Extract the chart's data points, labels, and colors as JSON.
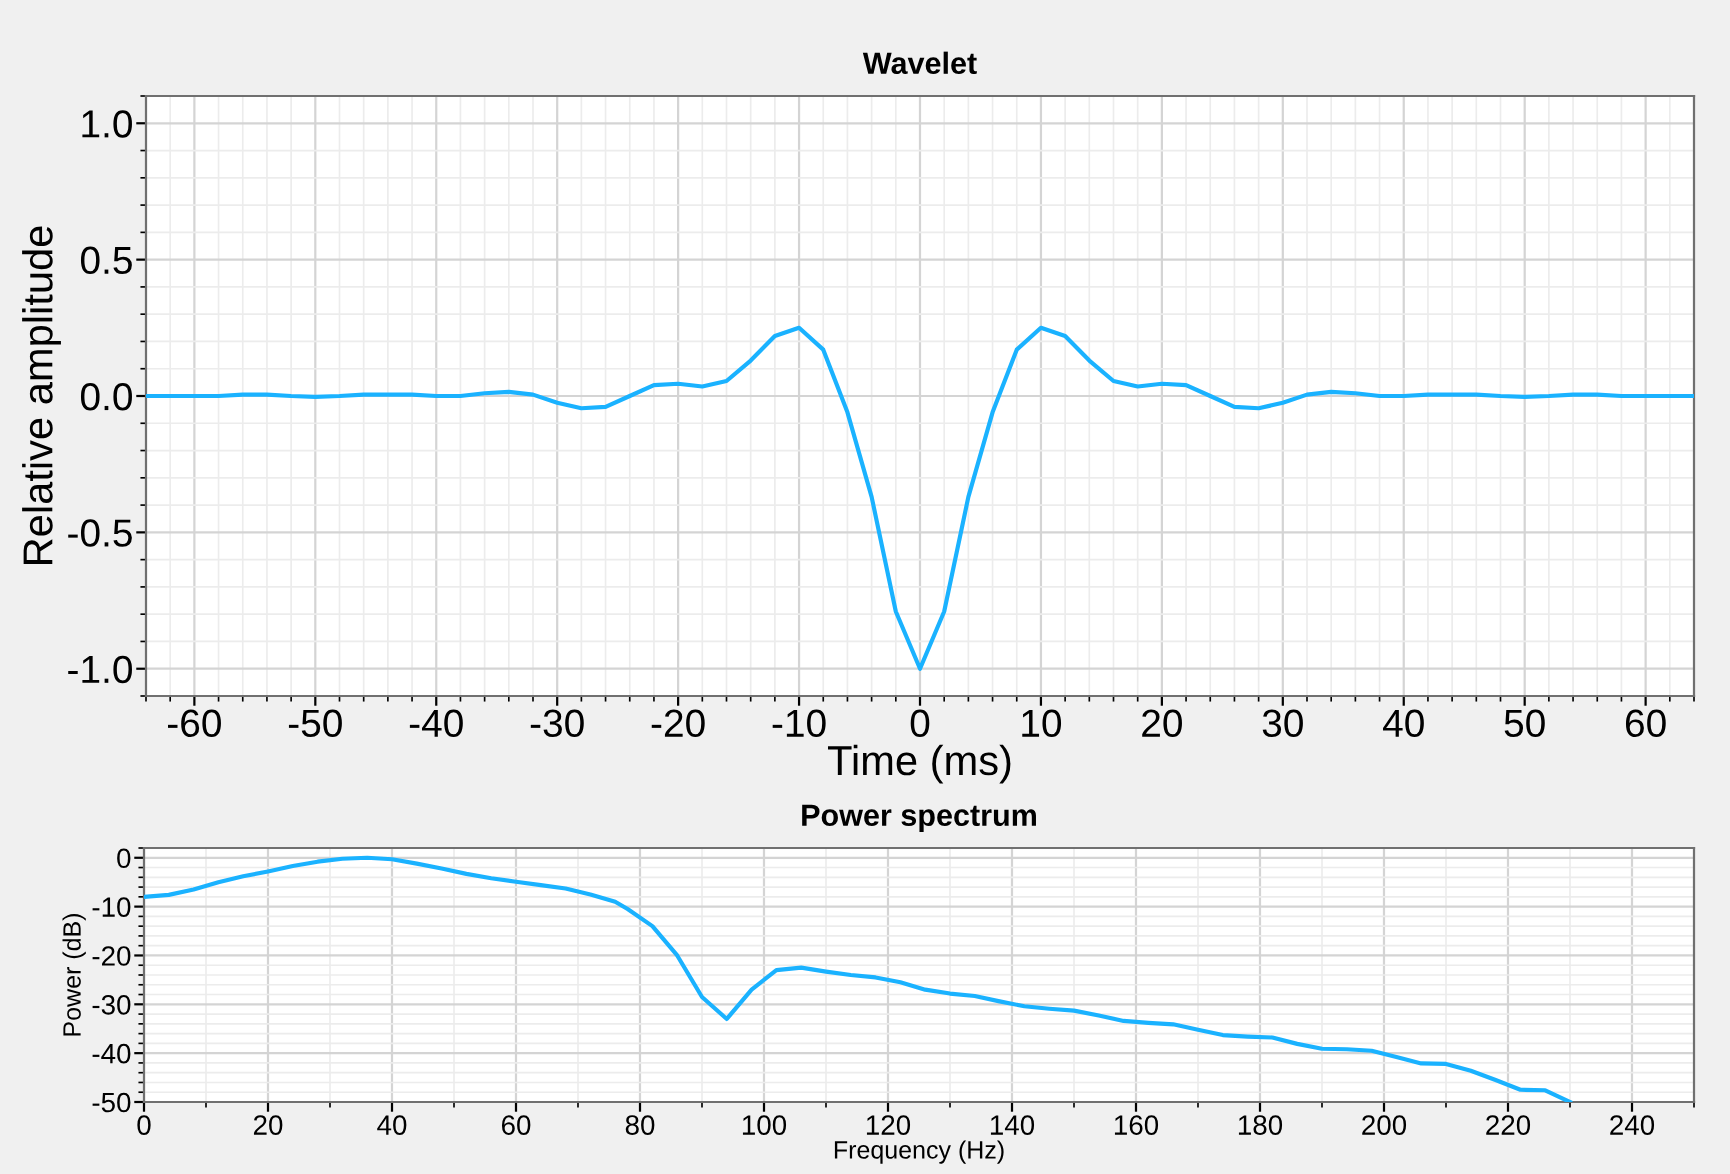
{
  "chart_data": [
    {
      "type": "line",
      "title": "Wavelet",
      "xlabel": "Time (ms)",
      "ylabel": "Relative amplitude",
      "xlim": [
        -64,
        64
      ],
      "ylim": [
        -1.1,
        1.1
      ],
      "xticks": [
        -60,
        -50,
        -40,
        -30,
        -20,
        -10,
        0,
        10,
        20,
        30,
        40,
        50,
        60
      ],
      "yticks": [
        {
          "value": -1.0,
          "label": "-1.0"
        },
        {
          "value": -0.5,
          "label": "-0.5"
        },
        {
          "value": 0.0,
          "label": "0.0"
        },
        {
          "value": 0.5,
          "label": "0.5"
        },
        {
          "value": 1.0,
          "label": "1.0"
        }
      ],
      "grid": true,
      "marker": "none",
      "line_style": "solid",
      "x": [
        -64,
        -62,
        -60,
        -58,
        -56,
        -54,
        -52,
        -50,
        -48,
        -46,
        -44,
        -42,
        -40,
        -38,
        -36,
        -34,
        -32,
        -30,
        -28,
        -26,
        -24,
        -22,
        -20,
        -18,
        -16,
        -14,
        -12,
        -10,
        -8,
        -6,
        -4,
        -2,
        0,
        2,
        4,
        6,
        8,
        10,
        12,
        14,
        16,
        18,
        20,
        22,
        24,
        26,
        28,
        30,
        32,
        34,
        36,
        38,
        40,
        42,
        44,
        46,
        48,
        50,
        52,
        54,
        56,
        58,
        60,
        62,
        64
      ],
      "series": [
        {
          "color": "#1ab2ff",
          "values": [
            0.0,
            0.0,
            0.0,
            0.0,
            0.005,
            0.005,
            0.0,
            -0.003,
            0.0,
            0.005,
            0.005,
            0.005,
            0.0,
            0.0,
            0.01,
            0.015,
            0.005,
            -0.025,
            -0.045,
            -0.04,
            0.0,
            0.04,
            0.045,
            0.035,
            0.055,
            0.13,
            0.22,
            0.25,
            0.17,
            -0.06,
            -0.37,
            -0.79,
            -1.0,
            -0.79,
            -0.37,
            -0.06,
            0.17,
            0.25,
            0.22,
            0.13,
            0.055,
            0.035,
            0.045,
            0.04,
            0.0,
            -0.04,
            -0.045,
            -0.025,
            0.005,
            0.015,
            0.01,
            0.0,
            0.0,
            0.005,
            0.005,
            0.005,
            0.0,
            -0.003,
            0.0,
            0.005,
            0.005,
            0.0,
            0.0,
            0.0,
            0.0
          ]
        }
      ]
    },
    {
      "type": "line",
      "title": "Power spectrum",
      "xlabel": "Frequency (Hz)",
      "ylabel": "Power (dB)",
      "xlim": [
        0,
        250
      ],
      "ylim": [
        -50,
        2
      ],
      "xticks": [
        0,
        20,
        40,
        60,
        80,
        100,
        120,
        140,
        160,
        180,
        200,
        220,
        240
      ],
      "yticks": [
        -50,
        -40,
        -30,
        -20,
        -10,
        0
      ],
      "grid": true,
      "marker": "none",
      "line_style": "solid",
      "x": [
        0,
        4,
        8,
        12,
        16,
        20,
        24,
        28,
        32,
        36,
        40,
        44,
        48,
        52,
        56,
        60,
        64,
        68,
        72,
        76,
        78,
        82,
        86,
        90,
        94,
        98,
        102,
        106,
        110,
        114,
        118,
        122,
        126,
        130,
        134,
        138,
        142,
        146,
        150,
        154,
        158,
        162,
        166,
        170,
        174,
        178,
        182,
        186,
        190,
        194,
        198,
        202,
        206,
        210,
        214,
        218,
        222,
        226,
        230
      ],
      "series": [
        {
          "color": "#1ab2ff",
          "values": [
            -8,
            -7.6,
            -6.5,
            -5,
            -3.8,
            -2.8,
            -1.7,
            -0.8,
            -0.2,
            0,
            -0.3,
            -1.2,
            -2.2,
            -3.3,
            -4.2,
            -4.9,
            -5.6,
            -6.3,
            -7.5,
            -9,
            -10.5,
            -14,
            -20,
            -28.5,
            -33,
            -27,
            -23,
            -22.5,
            -23.3,
            -24,
            -24.5,
            -25.5,
            -27,
            -27.8,
            -28.3,
            -29.4,
            -30.4,
            -30.9,
            -31.3,
            -32.3,
            -33.4,
            -33.8,
            -34.1,
            -35.2,
            -36.3,
            -36.6,
            -36.8,
            -38.1,
            -39.1,
            -39.2,
            -39.5,
            -40.8,
            -42.1,
            -42.2,
            -43.6,
            -45.5,
            -47.5,
            -47.6,
            -50
          ]
        }
      ]
    }
  ]
}
